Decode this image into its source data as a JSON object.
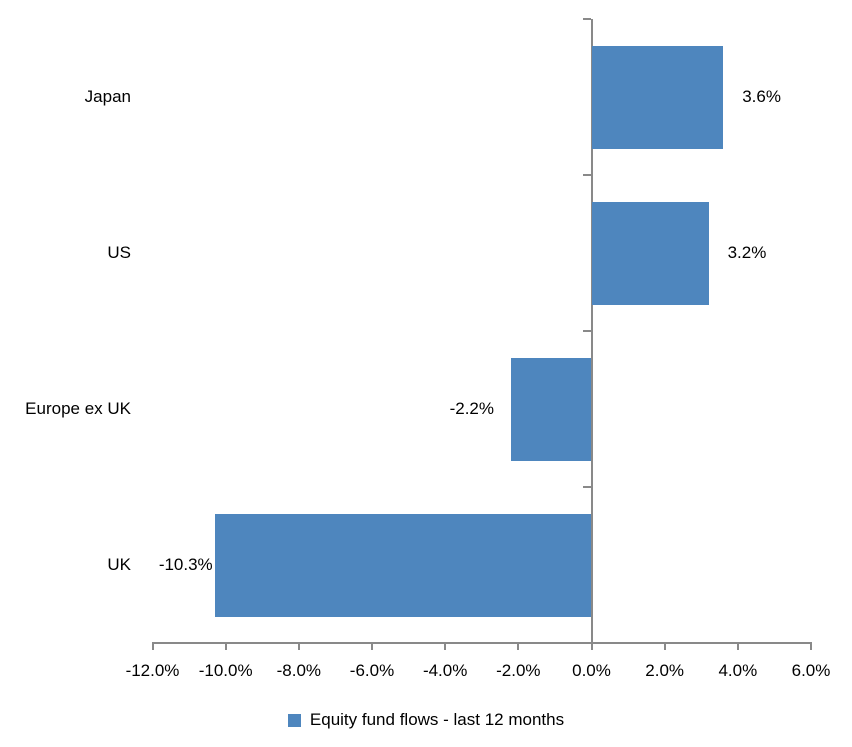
{
  "chart_data": {
    "type": "bar",
    "orientation": "horizontal",
    "title": "",
    "categories": [
      "Japan",
      "US",
      "Europe ex UK",
      "UK"
    ],
    "values": [
      3.6,
      3.2,
      -2.2,
      -10.3
    ],
    "data_labels": [
      "3.6%",
      "3.2%",
      "-2.2%",
      "-10.3%"
    ],
    "xlim": [
      -12,
      6
    ],
    "x_tick_values": [
      -12,
      -10,
      -8,
      -6,
      -4,
      -2,
      0,
      2,
      4,
      6
    ],
    "x_tick_labels": [
      "-12.0%",
      "-10.0%",
      "-8.0%",
      "-6.0%",
      "-4.0%",
      "-2.0%",
      "0.0%",
      "2.0%",
      "4.0%",
      "6.0%"
    ],
    "legend": "Equity fund flows - last 12 months",
    "legend_position": "bottom",
    "grid": false,
    "bar_color": "#4E86BE",
    "axis_color": "#898989",
    "text_color": "#000000"
  }
}
